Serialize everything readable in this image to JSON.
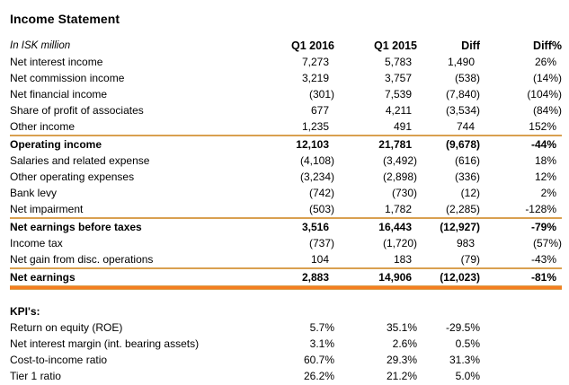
{
  "title": "Income Statement",
  "colors": {
    "accent_thin": "#D9A050",
    "accent_thick": "#F57E20"
  },
  "table": {
    "unit_label": "In ISK million",
    "columns": [
      "Q1 2016",
      "Q1 2015",
      "Diff",
      "Diff%"
    ],
    "rows": [
      {
        "label": "Net interest income",
        "values": [
          "7,273",
          "5,783",
          "1,490",
          "26%"
        ],
        "bold": false,
        "line_above": false
      },
      {
        "label": "Net commission income",
        "values": [
          "3,219",
          "3,757",
          "(538)",
          "(14%)"
        ],
        "bold": false,
        "line_above": false
      },
      {
        "label": "Net financial income",
        "values": [
          "(301)",
          "7,539",
          "(7,840)",
          "(104%)"
        ],
        "bold": false,
        "line_above": false
      },
      {
        "label": "Share of profit of associates",
        "values": [
          "677",
          "4,211",
          "(3,534)",
          "(84%)"
        ],
        "bold": false,
        "line_above": false
      },
      {
        "label": "Other income",
        "values": [
          "1,235",
          "491",
          "744",
          "152%"
        ],
        "bold": false,
        "line_above": false
      },
      {
        "label": "Operating income",
        "values": [
          "12,103",
          "21,781",
          "(9,678)",
          "-44%"
        ],
        "bold": true,
        "line_above": true
      },
      {
        "label": "Salaries and related expense",
        "values": [
          "(4,108)",
          "(3,492)",
          "(616)",
          "18%"
        ],
        "bold": false,
        "line_above": false
      },
      {
        "label": "Other operating expenses",
        "values": [
          "(3,234)",
          "(2,898)",
          "(336)",
          "12%"
        ],
        "bold": false,
        "line_above": false
      },
      {
        "label": "Bank levy",
        "values": [
          "(742)",
          "(730)",
          "(12)",
          "2%"
        ],
        "bold": false,
        "line_above": false
      },
      {
        "label": "Net impairment",
        "values": [
          "(503)",
          "1,782",
          "(2,285)",
          "-128%"
        ],
        "bold": false,
        "line_above": false
      },
      {
        "label": "Net earnings before taxes",
        "values": [
          "3,516",
          "16,443",
          "(12,927)",
          "-79%"
        ],
        "bold": true,
        "line_above": true
      },
      {
        "label": "Income tax",
        "values": [
          "(737)",
          "(1,720)",
          "983",
          "(57%)"
        ],
        "bold": false,
        "line_above": false
      },
      {
        "label": "Net gain from disc. operations",
        "values": [
          "104",
          "183",
          "(79)",
          "-43%"
        ],
        "bold": false,
        "line_above": false
      },
      {
        "label": "Net earnings",
        "values": [
          "2,883",
          "14,906",
          "(12,023)",
          "-81%"
        ],
        "bold": true,
        "line_above": true
      }
    ]
  },
  "kpi": {
    "heading": "KPI's:",
    "rows": [
      {
        "label": "Return on equity (ROE)",
        "values": [
          "5.7%",
          "35.1%",
          "-29.5%",
          ""
        ]
      },
      {
        "label": "Net interest margin (int. bearing assets)",
        "values": [
          "3.1%",
          "2.6%",
          "0.5%",
          ""
        ]
      },
      {
        "label": "Cost-to-income ratio",
        "values": [
          "60.7%",
          "29.3%",
          "31.3%",
          ""
        ]
      },
      {
        "label": "Tier 1 ratio",
        "values": [
          "26.2%",
          "21.2%",
          "5.0%",
          ""
        ]
      }
    ]
  }
}
